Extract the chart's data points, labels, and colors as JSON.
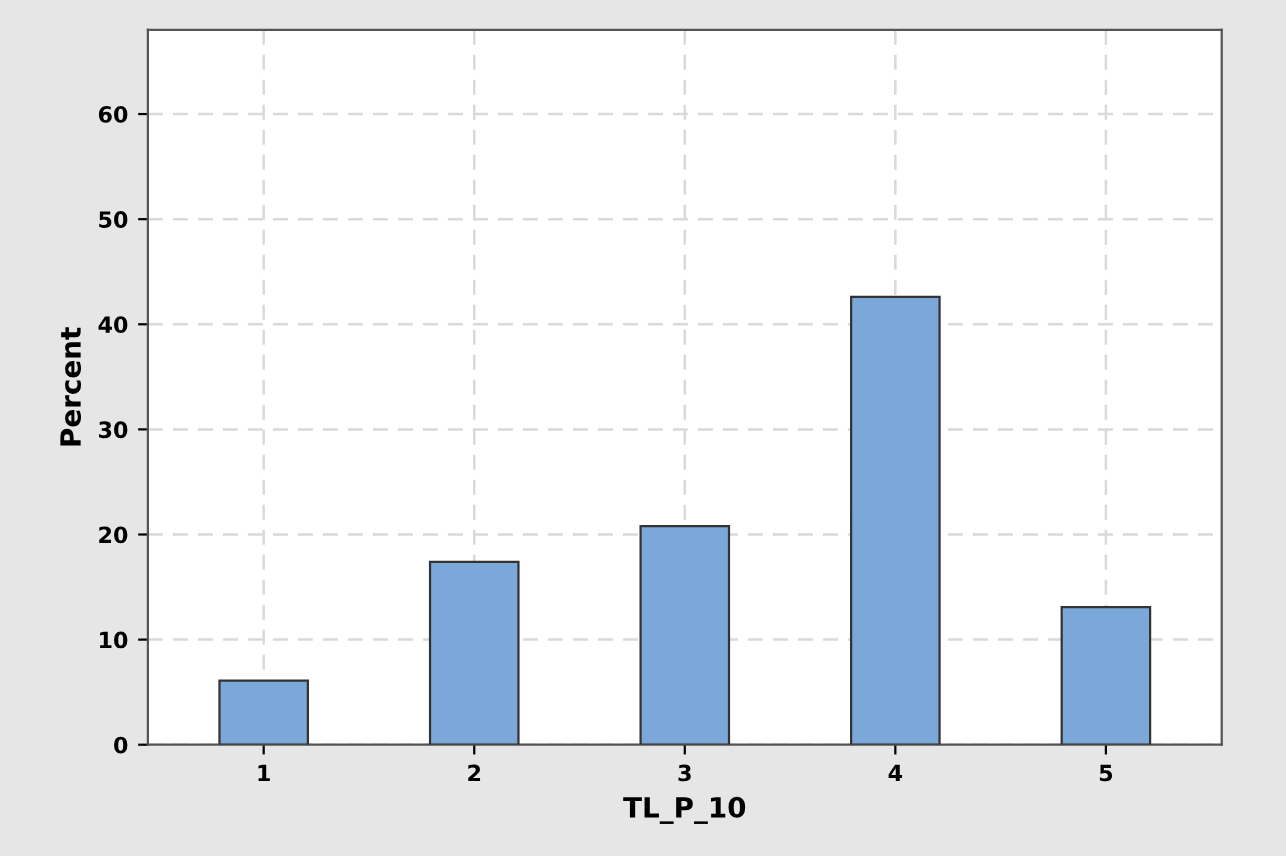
{
  "chart_data": {
    "type": "bar",
    "xlabel": "TL_P_10",
    "ylabel": "Percent",
    "categories": [
      "1",
      "2",
      "3",
      "4",
      "5"
    ],
    "values": [
      6.1,
      17.4,
      20.8,
      42.6,
      13.1
    ],
    "color": "#7ba7d9",
    "ylim": [
      0,
      68
    ],
    "yticks": [
      0,
      10,
      20,
      30,
      40,
      50,
      60
    ],
    "grid": true
  }
}
